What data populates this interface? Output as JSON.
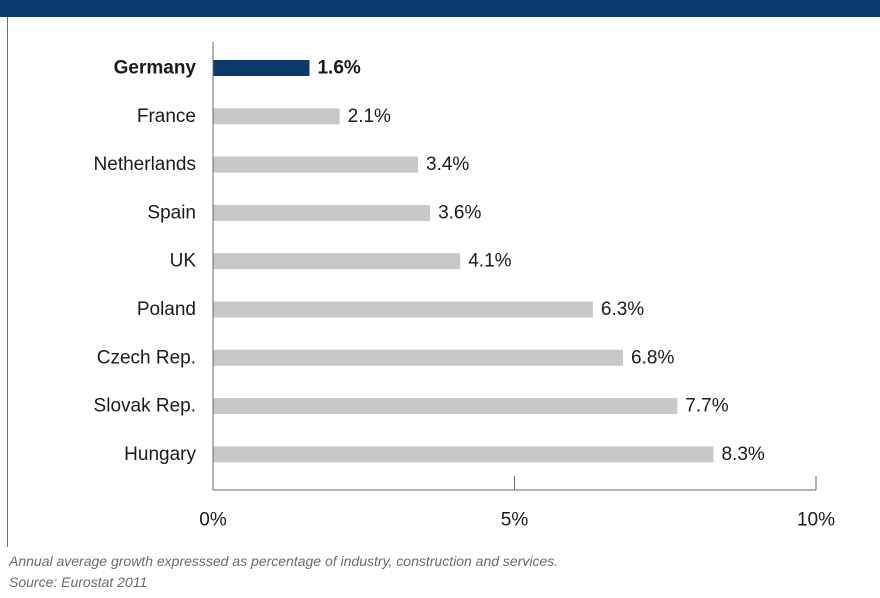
{
  "chart_data": {
    "type": "bar",
    "orientation": "horizontal",
    "categories": [
      "Germany",
      "France",
      "Netherlands",
      "Spain",
      "UK",
      "Poland",
      "Czech Rep.",
      "Slovak Rep.",
      "Hungary"
    ],
    "values": [
      1.6,
      2.1,
      3.4,
      3.6,
      4.1,
      6.3,
      6.8,
      7.7,
      8.3
    ],
    "value_labels": [
      "1.6%",
      "2.1%",
      "3.4%",
      "3.6%",
      "4.1%",
      "6.3%",
      "6.8%",
      "7.7%",
      "8.3%"
    ],
    "highlight": "Germany",
    "xlim": [
      0,
      10
    ],
    "x_ticks": [
      0,
      5,
      10
    ],
    "x_tick_labels": [
      "0%",
      "5%",
      "10%"
    ],
    "grid": false,
    "colors": {
      "highlight": "#0b3a6f",
      "default": "#c8c8c8",
      "header": "#0b3a6f"
    }
  },
  "footnotes": {
    "line1": "Annual average growth expresssed as percentage of industry, construction and services.",
    "line2": "Source: Eurostat 2011"
  }
}
